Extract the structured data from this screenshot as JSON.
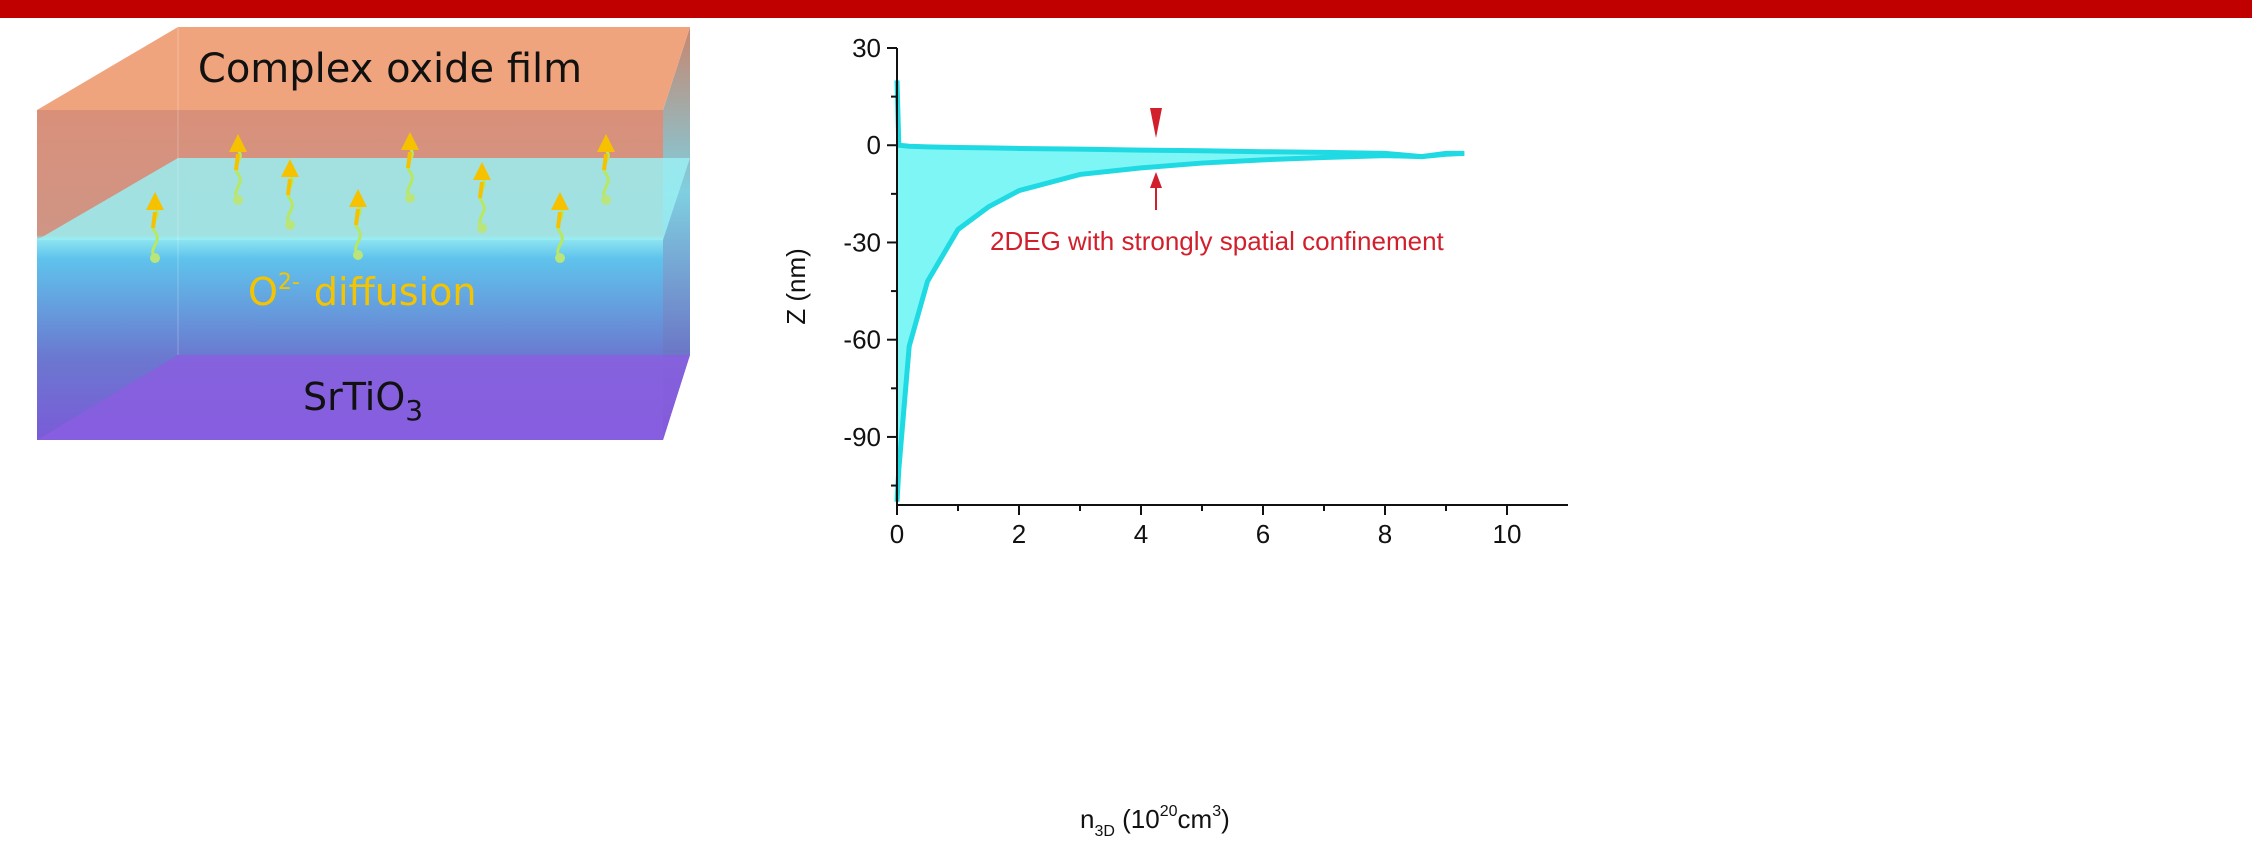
{
  "diagram": {
    "film_label": "Complex oxide film",
    "diffusion_ion": "O",
    "diffusion_charge": "2-",
    "diffusion_word": "diffusion",
    "substrate_main": "SrTiO",
    "substrate_sub": "3"
  },
  "chart_data": {
    "type": "band",
    "x": [
      0,
      0.03,
      0.2,
      0.5,
      1,
      1.5,
      2,
      3,
      4,
      5,
      6,
      7,
      8,
      8.6,
      9.0,
      9.3
    ],
    "upper": [
      20,
      0,
      -0.3,
      -0.5,
      -0.7,
      -0.8,
      -1,
      -1.2,
      -1.5,
      -1.7,
      -2,
      -2.2,
      -2.5,
      -3.5,
      -2.5,
      -2.5
    ],
    "lower": [
      -110,
      -100,
      -62,
      -42,
      -26,
      -19,
      -14,
      -9,
      -7,
      -5.5,
      -4.5,
      -3.8,
      -3.2,
      -3.5,
      -2.8,
      -2.5
    ],
    "color": "#7ff6f6",
    "edge_color": "#1fd9e3",
    "xlim": [
      0,
      11
    ],
    "ylim": [
      -111,
      30
    ],
    "xticks": [
      0,
      2,
      4,
      6,
      8,
      10
    ],
    "yticks": [
      30,
      0,
      -30,
      -60,
      -90
    ],
    "xminorticks": [
      1,
      3,
      5,
      7,
      9
    ],
    "yminorticks": [
      15,
      -15,
      -45,
      -75,
      -105
    ],
    "ylabel": "Z (nm)",
    "xlabel": [
      "n",
      "3D",
      " (10",
      "20",
      "cm",
      "3",
      ")"
    ],
    "annotation": "2DEG with strongly spatial confinement",
    "annotation_color": "#d11f2c"
  }
}
